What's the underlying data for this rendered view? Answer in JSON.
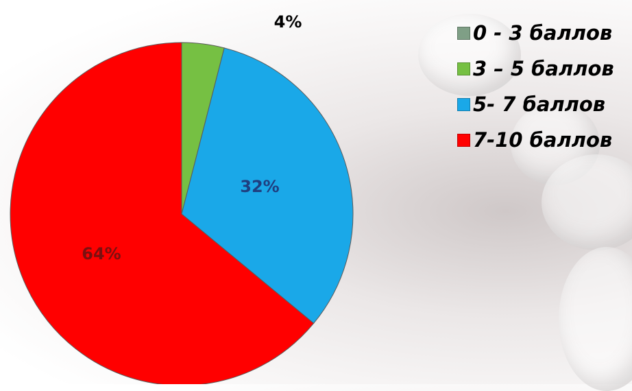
{
  "chart_data": {
    "type": "pie",
    "categories": [
      "0 - 3 баллов",
      "3 – 5 баллов",
      "5- 7 баллов",
      "7-10 баллов"
    ],
    "values": [
      0,
      4,
      32,
      64
    ],
    "labels": [
      "",
      "4%",
      "32%",
      "64%"
    ],
    "colors": [
      "#7f9f86",
      "#76c043",
      "#1aa8e8",
      "#ff0000"
    ],
    "label_colors": [
      "#000000",
      "#000000",
      "#1f3f80",
      "#7a1010"
    ],
    "legend_position": "top-right"
  }
}
